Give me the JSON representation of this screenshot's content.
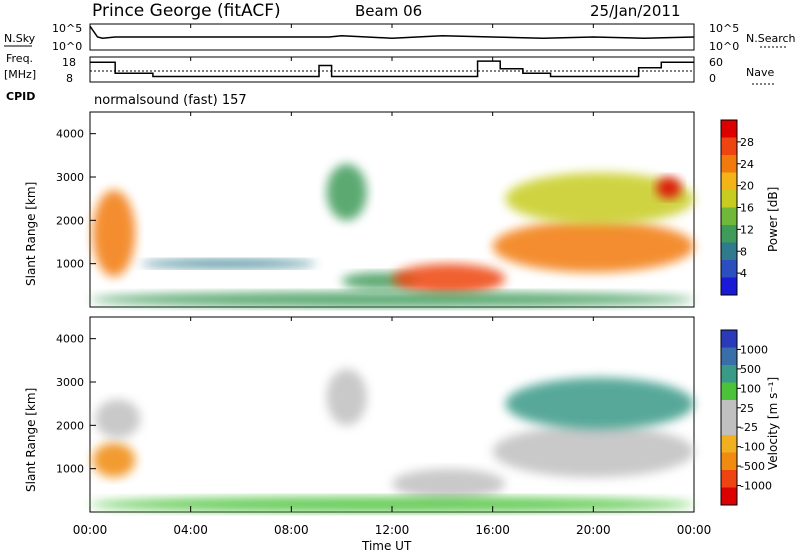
{
  "header": {
    "station": "Prince George (fitACF)",
    "beam": "Beam 06",
    "date": "25/Jan/2011"
  },
  "left_labels": {
    "nsky": "N.Sky",
    "freq_top": "Freq.",
    "freq_bottom": "[MHz]",
    "cpid": "CPID"
  },
  "right_labels": {
    "nsearch": "N.Search",
    "nave": "Nave"
  },
  "cpid_text": "normalsound (fast) 157",
  "colors": {
    "power_scale": [
      "#1a1ad6",
      "#2b4fbf",
      "#2f7a8c",
      "#3f9b5a",
      "#6fb83a",
      "#c7cc20",
      "#f2b417",
      "#f27a0d",
      "#ee4411",
      "#dd0000"
    ],
    "velocity_scale": [
      "#2a3ab8",
      "#3a6ea8",
      "#3a9a88",
      "#4cc23a",
      "#c0c0c0",
      "#c0c0c0",
      "#f0b020",
      "#f08a10",
      "#ee4411",
      "#dd0000"
    ]
  },
  "chart_data": [
    {
      "type": "line",
      "name": "N.Sky / N.Search",
      "yticklabels_left": [
        "10^5",
        "10^0"
      ],
      "yticklabels_right": [
        "10^5",
        "10^0"
      ],
      "x_hours": [
        0,
        0.3,
        0.5,
        1,
        2,
        3.2,
        4,
        6,
        8,
        9.5,
        10,
        12,
        14,
        16,
        18,
        20,
        22,
        24
      ],
      "y": [
        0.95,
        0.5,
        0.45,
        0.5,
        0.5,
        0.5,
        0.5,
        0.5,
        0.5,
        0.5,
        0.55,
        0.45,
        0.55,
        0.5,
        0.45,
        0.5,
        0.45,
        0.5
      ]
    },
    {
      "type": "line",
      "name": "Freq / Nave",
      "yticklabels_left": [
        "18",
        "8"
      ],
      "yticklabels_right": [
        "60",
        "0"
      ],
      "freq_steps": [
        {
          "x_start": 0,
          "x_end": 1,
          "mhz": 17
        },
        {
          "x_start": 1,
          "x_end": 2.5,
          "mhz": 12
        },
        {
          "x_start": 2.5,
          "x_end": 9.1,
          "mhz": 10.5
        },
        {
          "x_start": 9.1,
          "x_end": 9.6,
          "mhz": 15.5
        },
        {
          "x_start": 9.6,
          "x_end": 15.4,
          "mhz": 10.5
        },
        {
          "x_start": 15.4,
          "x_end": 16.3,
          "mhz": 17.5
        },
        {
          "x_start": 16.3,
          "x_end": 17.2,
          "mhz": 14
        },
        {
          "x_start": 17.2,
          "x_end": 18.3,
          "mhz": 12
        },
        {
          "x_start": 18.3,
          "x_end": 21.8,
          "mhz": 10.5
        },
        {
          "x_start": 21.8,
          "x_end": 22.7,
          "mhz": 14.5
        },
        {
          "x_start": 22.7,
          "x_end": 24,
          "mhz": 17
        }
      ],
      "nave_level": 30
    },
    {
      "type": "heatmap",
      "name": "Power",
      "ylabel": "Slant Range [km]",
      "yticks": [
        1000,
        2000,
        3000,
        4000
      ],
      "ylim": [
        0,
        4500
      ],
      "colorbar_label": "Power [dB]",
      "colorbar_ticks": [
        4,
        8,
        12,
        16,
        20,
        24,
        28
      ],
      "blobs": [
        {
          "t0": 0.1,
          "t1": 1.8,
          "r0": 700,
          "r1": 2700,
          "level": 0.75
        },
        {
          "t0": 9.4,
          "t1": 11.0,
          "r0": 2000,
          "r1": 3300,
          "level": 0.3
        },
        {
          "t0": 10.0,
          "t1": 13.0,
          "r0": 400,
          "r1": 800,
          "level": 0.3
        },
        {
          "t0": 12.0,
          "t1": 16.5,
          "r0": 300,
          "r1": 1000,
          "level": 0.9
        },
        {
          "t0": 16.0,
          "t1": 24.0,
          "r0": 800,
          "r1": 2000,
          "level": 0.8
        },
        {
          "t0": 16.5,
          "t1": 24.0,
          "r0": 1900,
          "r1": 3100,
          "level": 0.5
        },
        {
          "t0": 22.5,
          "t1": 23.5,
          "r0": 2500,
          "r1": 3000,
          "level": 0.95
        },
        {
          "t0": 2.0,
          "t1": 9.0,
          "r0": 900,
          "r1": 1100,
          "level": 0.2
        },
        {
          "t0": 0.0,
          "t1": 24.0,
          "r0": 0,
          "r1": 350,
          "level": 0.3
        }
      ]
    },
    {
      "type": "heatmap",
      "name": "Velocity",
      "ylabel": "Slant Range [km]",
      "yticks": [
        1000,
        2000,
        3000,
        4000
      ],
      "ylim": [
        0,
        4500
      ],
      "xlabel": "Time UT",
      "xticklabels": [
        "00:00",
        "04:00",
        "08:00",
        "12:00",
        "16:00",
        "20:00",
        "00:00"
      ],
      "colorbar_label": "Velocity [m s⁻¹]",
      "colorbar_ticks": [
        1000,
        500,
        100,
        25,
        -25,
        -100,
        -500,
        -1000
      ],
      "blobs": [
        {
          "t0": 0.1,
          "t1": 1.8,
          "r0": 800,
          "r1": 1600,
          "level": 0.75
        },
        {
          "t0": 0.2,
          "t1": 2.0,
          "r0": 1700,
          "r1": 2600,
          "level": 0.5
        },
        {
          "t0": 9.4,
          "t1": 11.0,
          "r0": 2000,
          "r1": 3300,
          "level": 0.5
        },
        {
          "t0": 12.0,
          "t1": 16.5,
          "r0": 300,
          "r1": 1000,
          "level": 0.4
        },
        {
          "t0": 16.0,
          "t1": 24.0,
          "r0": 800,
          "r1": 2000,
          "level": 0.55
        },
        {
          "t0": 16.5,
          "t1": 24.0,
          "r0": 1900,
          "r1": 3100,
          "level": 0.2
        },
        {
          "t0": 0.0,
          "t1": 24.0,
          "r0": 0,
          "r1": 350,
          "level": 0.35
        }
      ]
    }
  ]
}
